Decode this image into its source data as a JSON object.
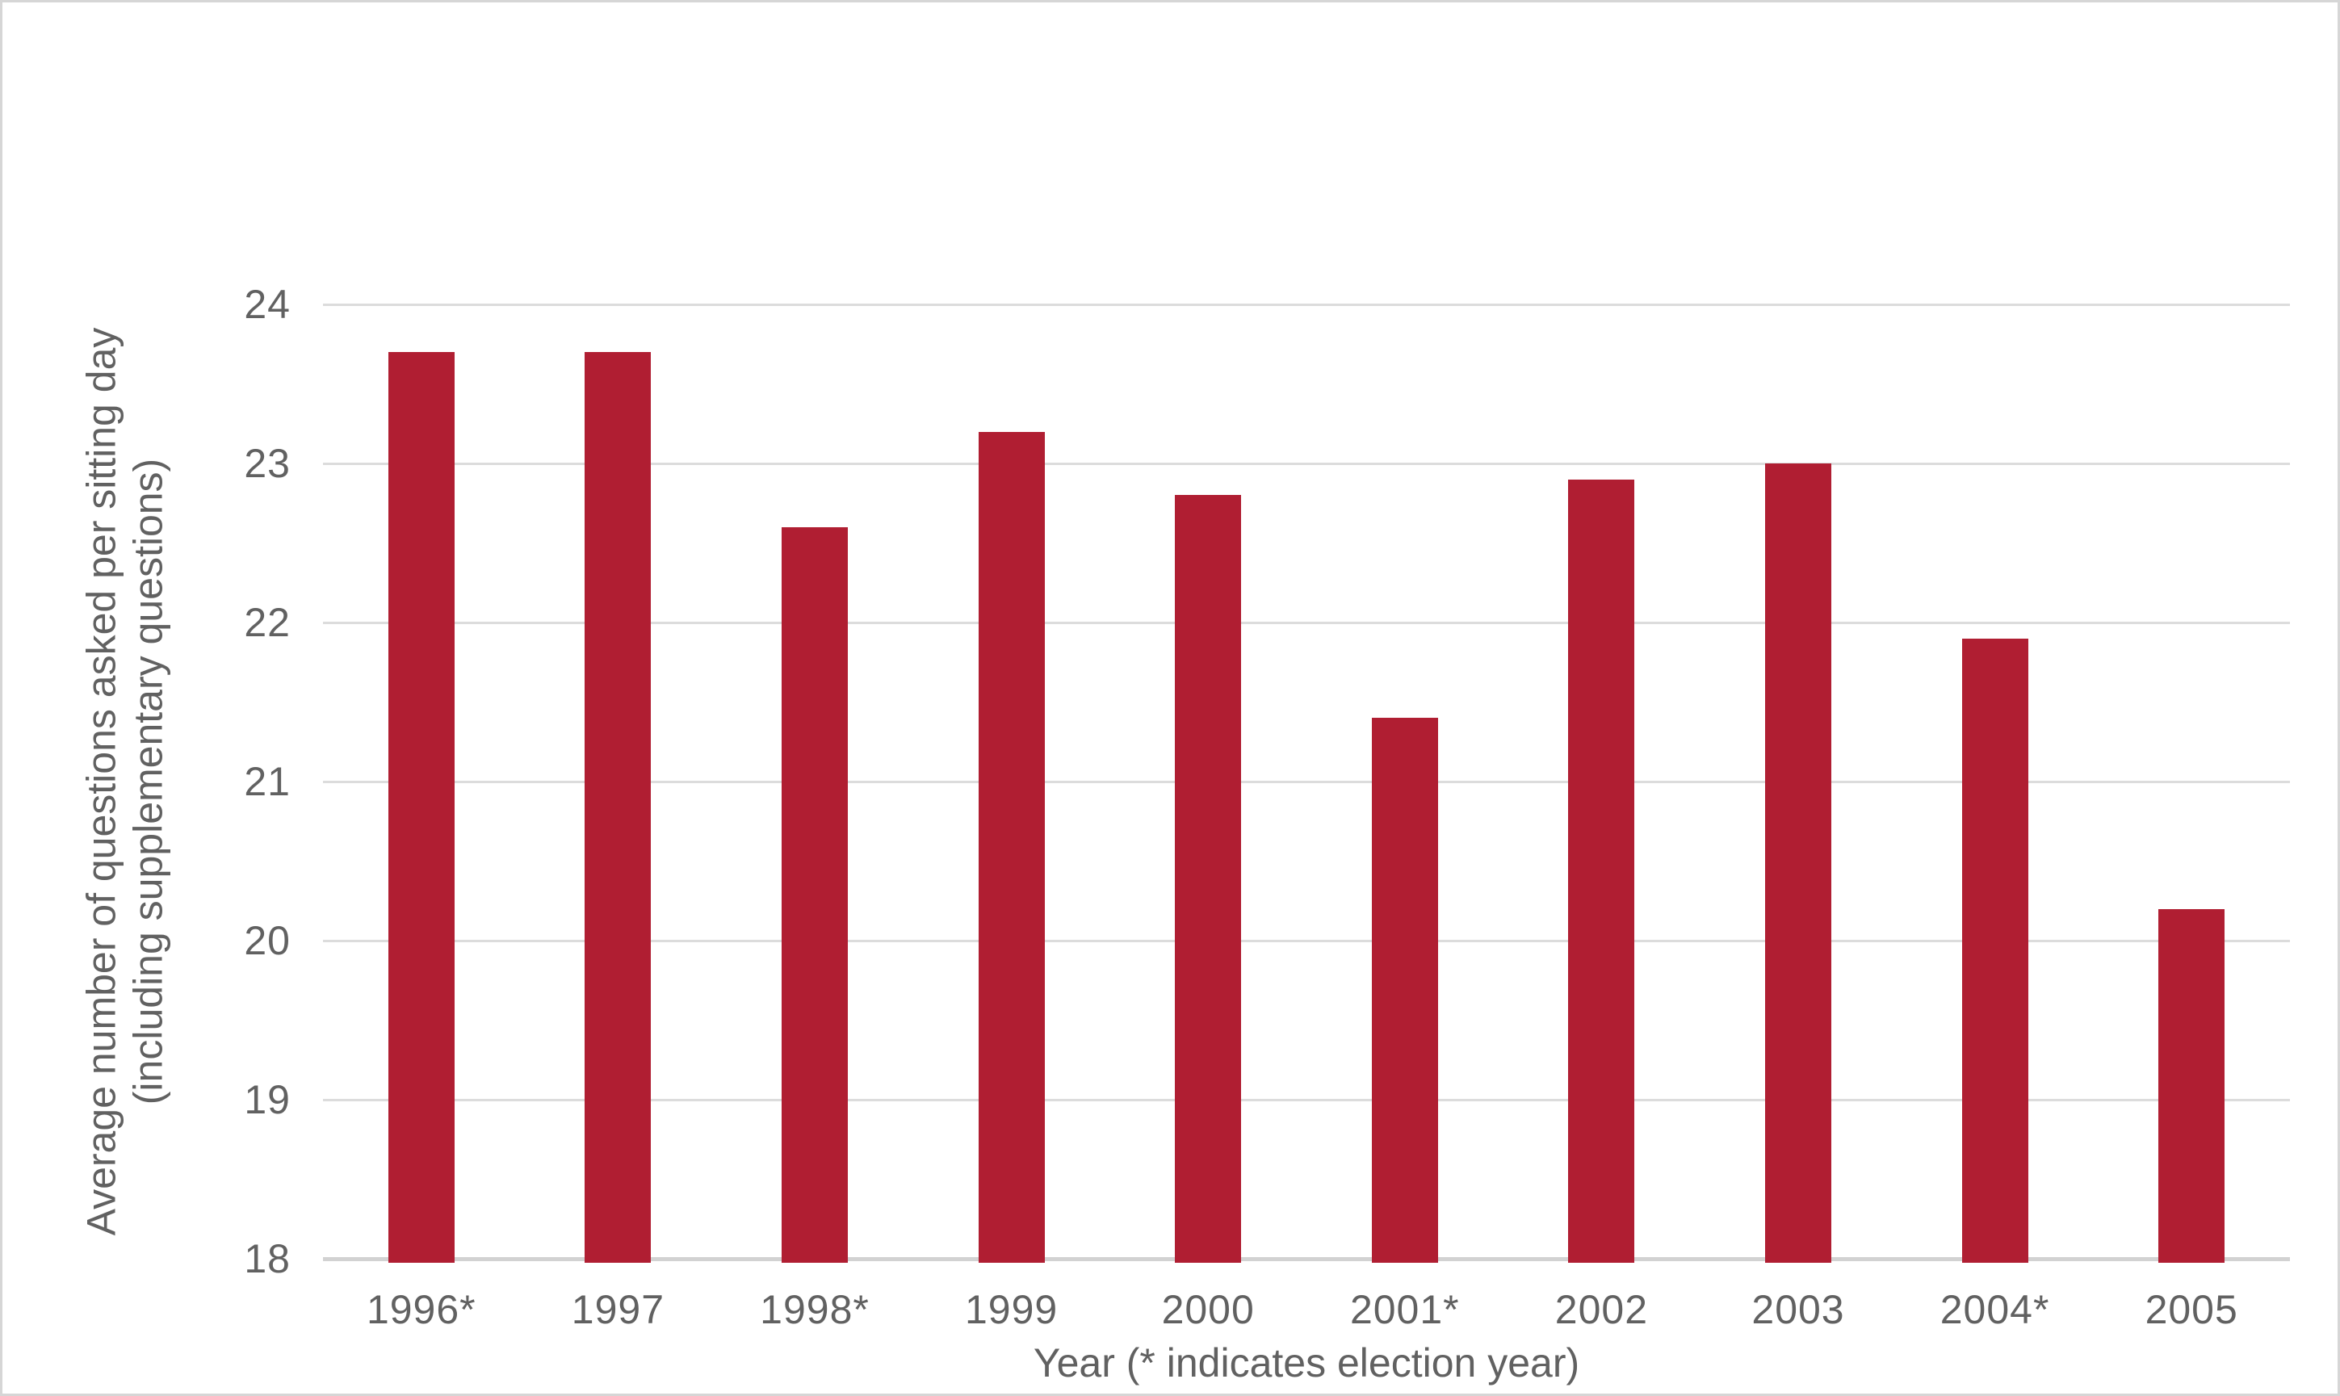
{
  "chart_data": {
    "type": "bar",
    "categories": [
      "1996*",
      "1997",
      "1998*",
      "1999",
      "2000",
      "2001*",
      "2002",
      "2003",
      "2004*",
      "2005"
    ],
    "values": [
      23.7,
      23.7,
      22.6,
      23.2,
      22.8,
      21.4,
      22.9,
      23.0,
      21.9,
      20.2
    ],
    "title": "",
    "xlabel": "Year (* indicates election year)",
    "ylabel_line1": "Average number of questions asked per sitting day",
    "ylabel_line2": "(including supplementary questions)",
    "ylim": [
      18,
      24
    ],
    "yticks": [
      18,
      19,
      20,
      21,
      22,
      23,
      24
    ],
    "grid": "horizontal",
    "legend_position": "none",
    "bar_color": "#b01e32",
    "gridline_color": "#dcdcdc",
    "axis_line_color": "#d2d2d2",
    "text_color": "#616161"
  }
}
